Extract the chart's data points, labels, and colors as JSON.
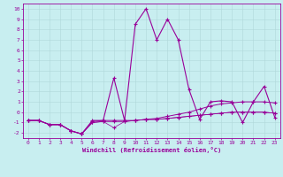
{
  "xlabel": "Windchill (Refroidissement éolien,°C)",
  "bg_color": "#c8eef0",
  "grid_color": "#b0d8da",
  "line_color": "#990099",
  "xlim": [
    -0.5,
    23.5
  ],
  "ylim": [
    -2.5,
    10.5
  ],
  "x_ticks": [
    0,
    1,
    2,
    3,
    4,
    5,
    6,
    7,
    8,
    9,
    10,
    11,
    12,
    13,
    14,
    15,
    16,
    17,
    18,
    19,
    20,
    21,
    22,
    23
  ],
  "yticks": [
    -2,
    -1,
    0,
    1,
    2,
    3,
    4,
    5,
    6,
    7,
    8,
    9,
    10
  ],
  "line1_x": [
    0,
    1,
    2,
    3,
    4,
    5,
    6,
    7,
    8,
    9,
    10,
    11,
    12,
    13,
    14,
    15,
    16,
    17,
    18,
    19,
    20,
    21,
    22,
    23
  ],
  "line1_y": [
    -0.8,
    -0.8,
    -1.2,
    -1.2,
    -1.8,
    -2.1,
    -0.8,
    -0.8,
    3.3,
    -0.8,
    8.5,
    10.0,
    7.0,
    9.0,
    7.0,
    2.2,
    -0.7,
    1.0,
    1.1,
    1.0,
    -1.0,
    1.0,
    2.5,
    -0.5
  ],
  "line2_x": [
    0,
    1,
    2,
    3,
    4,
    5,
    6,
    7,
    8,
    9,
    10,
    11,
    12,
    13,
    14,
    15,
    16,
    17,
    18,
    19,
    20,
    21,
    22,
    23
  ],
  "line2_y": [
    -0.8,
    -0.8,
    -1.2,
    -1.2,
    -1.8,
    -2.1,
    -0.9,
    -0.8,
    -0.8,
    -0.8,
    -0.8,
    -0.7,
    -0.6,
    -0.4,
    -0.2,
    0.0,
    0.3,
    0.6,
    0.8,
    0.9,
    1.0,
    1.0,
    1.0,
    0.9
  ],
  "line3_x": [
    0,
    1,
    2,
    3,
    4,
    5,
    6,
    7,
    8,
    9,
    10,
    11,
    12,
    13,
    14,
    15,
    16,
    17,
    18,
    19,
    20,
    21,
    22,
    23
  ],
  "line3_y": [
    -0.8,
    -0.8,
    -1.2,
    -1.2,
    -1.8,
    -2.1,
    -1.0,
    -0.9,
    -0.9,
    -0.9,
    -0.8,
    -0.7,
    -0.7,
    -0.6,
    -0.5,
    -0.4,
    -0.3,
    -0.2,
    -0.1,
    0.0,
    0.0,
    0.0,
    0.0,
    -0.1
  ],
  "line4_x": [
    0,
    1,
    2,
    3,
    4,
    5,
    6,
    7,
    8,
    9,
    10,
    11,
    12,
    13,
    14,
    15,
    16,
    17,
    18,
    19,
    20,
    21,
    22,
    23
  ],
  "line4_y": [
    -0.8,
    -0.8,
    -1.2,
    -1.2,
    -1.8,
    -2.1,
    -1.0,
    -0.9,
    -1.5,
    -0.9,
    -0.8,
    -0.7,
    -0.7,
    -0.6,
    -0.5,
    -0.4,
    -0.3,
    -0.2,
    -0.1,
    0.0,
    0.0,
    0.0,
    0.0,
    -0.1
  ]
}
